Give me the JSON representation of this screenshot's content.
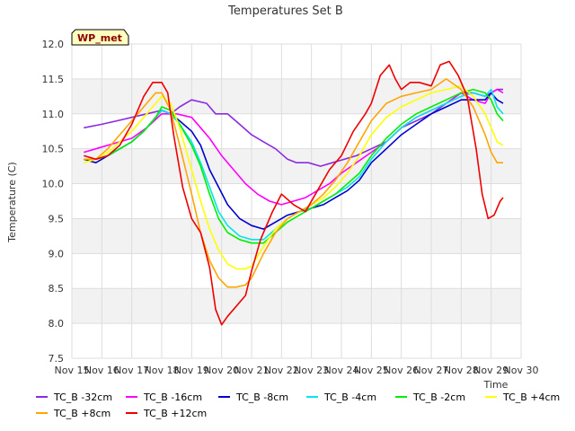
{
  "chart_data": {
    "type": "line",
    "title": "Temperatures Set B",
    "xlabel": "Time",
    "ylabel": "Temperature (C)",
    "badge": "WP_met",
    "ylim": [
      7.5,
      12.0
    ],
    "yticks": [
      "7.5",
      "8.0",
      "8.5",
      "9.0",
      "9.5",
      "10.0",
      "10.5",
      "11.0",
      "11.5",
      "12.0"
    ],
    "xlim": [
      15,
      30
    ],
    "xticks": [
      "Nov 15",
      "Nov 16",
      "Nov 17",
      "Nov 18",
      "Nov 19",
      "Nov 20",
      "Nov 21",
      "Nov 22",
      "Nov 23",
      "Nov 24",
      "Nov 25",
      "Nov 26",
      "Nov 27",
      "Nov 28",
      "Nov 29",
      "Nov 30"
    ],
    "grid": true,
    "legend_position": "bottom",
    "series": [
      {
        "name": "TC_B -32cm",
        "color": "#8a2be2",
        "x": [
          15.4,
          16,
          16.5,
          17,
          17.5,
          18,
          18.3,
          18.6,
          19.0,
          19.5,
          19.8,
          20.2,
          20.6,
          21.0,
          21.4,
          21.8,
          22.2,
          22.5,
          22.9,
          23.3,
          23.7,
          24.1,
          24.5,
          25.0,
          25.5,
          26.0,
          26.5,
          27.0,
          27.5,
          28.0,
          28.4,
          28.8,
          29.0,
          29.2,
          29.4
        ],
        "y": [
          10.8,
          10.85,
          10.9,
          10.95,
          11.0,
          11.05,
          11.0,
          11.1,
          11.2,
          11.15,
          11.0,
          11.0,
          10.85,
          10.7,
          10.6,
          10.5,
          10.35,
          10.3,
          10.3,
          10.25,
          10.3,
          10.35,
          10.4,
          10.5,
          10.6,
          10.8,
          10.9,
          11.0,
          11.15,
          11.3,
          11.3,
          11.25,
          11.3,
          11.35,
          11.35
        ]
      },
      {
        "name": "TC_B -16cm",
        "color": "#ff00ff",
        "x": [
          15.4,
          15.8,
          16.2,
          16.6,
          17.0,
          17.5,
          18.0,
          18.5,
          19.0,
          19.3,
          19.6,
          20.0,
          20.4,
          20.8,
          21.2,
          21.6,
          22.0,
          22.4,
          22.8,
          23.2,
          23.6,
          24.0,
          24.5,
          25.0,
          25.5,
          26.0,
          26.5,
          27.0,
          27.5,
          28.0,
          28.4,
          28.8,
          29.0,
          29.2,
          29.4
        ],
        "y": [
          10.45,
          10.5,
          10.55,
          10.6,
          10.65,
          10.8,
          11.0,
          11.0,
          10.95,
          10.8,
          10.65,
          10.4,
          10.2,
          10.0,
          9.85,
          9.75,
          9.7,
          9.75,
          9.8,
          9.9,
          10.0,
          10.15,
          10.3,
          10.45,
          10.6,
          10.8,
          10.95,
          11.05,
          11.15,
          11.3,
          11.2,
          11.15,
          11.3,
          11.35,
          11.3
        ]
      },
      {
        "name": "TC_B -8cm",
        "color": "#0000cd",
        "x": [
          15.4,
          15.8,
          16.2,
          16.6,
          17.0,
          17.4,
          17.8,
          18.0,
          18.3,
          18.6,
          19.0,
          19.3,
          19.6,
          19.9,
          20.2,
          20.6,
          21.0,
          21.4,
          21.8,
          22.2,
          22.6,
          23.0,
          23.4,
          23.8,
          24.2,
          24.6,
          25.0,
          25.5,
          26.0,
          26.5,
          27.0,
          27.5,
          28.0,
          28.4,
          28.8,
          29.0,
          29.2,
          29.4
        ],
        "y": [
          10.35,
          10.3,
          10.4,
          10.5,
          10.6,
          10.75,
          10.95,
          11.05,
          11.0,
          10.9,
          10.75,
          10.55,
          10.2,
          9.95,
          9.7,
          9.5,
          9.4,
          9.35,
          9.45,
          9.55,
          9.6,
          9.65,
          9.7,
          9.8,
          9.9,
          10.05,
          10.3,
          10.5,
          10.7,
          10.85,
          11.0,
          11.1,
          11.2,
          11.2,
          11.2,
          11.3,
          11.2,
          11.15
        ]
      },
      {
        "name": "TC_B -4cm",
        "color": "#00e5ee",
        "x": [
          15.4,
          15.8,
          16.2,
          16.6,
          17.0,
          17.4,
          17.8,
          18.0,
          18.3,
          18.6,
          19.0,
          19.3,
          19.6,
          19.9,
          20.2,
          20.6,
          21.0,
          21.4,
          21.8,
          22.2,
          22.6,
          23.0,
          23.4,
          23.8,
          24.2,
          24.6,
          25.0,
          25.5,
          26.0,
          26.5,
          27.0,
          27.5,
          28.0,
          28.4,
          28.8,
          29.0,
          29.2,
          29.4
        ],
        "y": [
          10.35,
          10.35,
          10.4,
          10.5,
          10.6,
          10.75,
          10.95,
          11.05,
          11.0,
          10.85,
          10.6,
          10.3,
          9.95,
          9.6,
          9.4,
          9.25,
          9.2,
          9.2,
          9.35,
          9.5,
          9.6,
          9.65,
          9.75,
          9.85,
          9.95,
          10.1,
          10.35,
          10.6,
          10.8,
          10.95,
          11.05,
          11.15,
          11.25,
          11.3,
          11.25,
          11.35,
          11.1,
          11.0
        ]
      },
      {
        "name": "TC_B -2cm",
        "color": "#00ee00",
        "x": [
          15.4,
          15.8,
          16.2,
          16.6,
          17.0,
          17.4,
          17.8,
          18.0,
          18.3,
          18.6,
          19.0,
          19.3,
          19.6,
          19.9,
          20.2,
          20.6,
          21.0,
          21.4,
          21.8,
          22.2,
          22.6,
          23.0,
          23.4,
          23.8,
          24.2,
          24.6,
          25.0,
          25.5,
          26.0,
          26.5,
          27.0,
          27.5,
          28.0,
          28.4,
          28.8,
          29.0,
          29.2,
          29.4
        ],
        "y": [
          10.35,
          10.35,
          10.4,
          10.5,
          10.6,
          10.75,
          10.95,
          11.1,
          11.05,
          10.85,
          10.55,
          10.25,
          9.85,
          9.5,
          9.3,
          9.2,
          9.15,
          9.15,
          9.3,
          9.45,
          9.55,
          9.65,
          9.75,
          9.85,
          10.0,
          10.15,
          10.4,
          10.65,
          10.85,
          11.0,
          11.1,
          11.2,
          11.3,
          11.35,
          11.3,
          11.2,
          11.0,
          10.9
        ]
      },
      {
        "name": "TC_B +4cm",
        "color": "#ffff00",
        "x": [
          15.4,
          15.8,
          16.2,
          16.6,
          17.0,
          17.4,
          17.8,
          18.0,
          18.3,
          18.6,
          19.0,
          19.3,
          19.6,
          19.9,
          20.2,
          20.5,
          20.8,
          21.0,
          21.4,
          21.8,
          22.2,
          22.6,
          23.0,
          23.4,
          23.8,
          24.2,
          24.6,
          25.0,
          25.5,
          26.0,
          26.5,
          27.0,
          27.5,
          28.0,
          28.4,
          28.8,
          29.0,
          29.2,
          29.4
        ],
        "y": [
          10.3,
          10.35,
          10.45,
          10.6,
          10.75,
          10.95,
          11.15,
          11.25,
          11.15,
          10.8,
          10.2,
          9.75,
          9.35,
          9.05,
          8.85,
          8.78,
          8.78,
          8.82,
          9.1,
          9.35,
          9.5,
          9.6,
          9.7,
          9.8,
          9.95,
          10.15,
          10.4,
          10.7,
          10.95,
          11.1,
          11.2,
          11.3,
          11.35,
          11.4,
          11.25,
          11.0,
          10.8,
          10.6,
          10.55
        ]
      },
      {
        "name": "TC_B +8cm",
        "color": "#ffa500",
        "x": [
          15.4,
          15.8,
          16.2,
          16.6,
          17.0,
          17.4,
          17.8,
          18.0,
          18.3,
          18.6,
          19.0,
          19.3,
          19.6,
          19.9,
          20.2,
          20.5,
          20.8,
          21.0,
          21.4,
          21.8,
          22.2,
          22.6,
          23.0,
          23.4,
          23.8,
          24.2,
          24.6,
          25.0,
          25.5,
          26.0,
          26.5,
          27.0,
          27.5,
          28.0,
          28.4,
          28.8,
          29.0,
          29.2,
          29.4
        ],
        "y": [
          10.35,
          10.35,
          10.5,
          10.7,
          10.9,
          11.1,
          11.3,
          11.3,
          11.05,
          10.55,
          9.85,
          9.3,
          8.9,
          8.65,
          8.52,
          8.52,
          8.55,
          8.65,
          9.0,
          9.3,
          9.5,
          9.6,
          9.7,
          9.85,
          10.05,
          10.3,
          10.6,
          10.9,
          11.15,
          11.25,
          11.3,
          11.35,
          11.5,
          11.35,
          11.1,
          10.7,
          10.45,
          10.3,
          10.3
        ]
      },
      {
        "name": "TC_B +12cm",
        "color": "#ee0000",
        "x": [
          15.4,
          15.8,
          16.2,
          16.6,
          17.0,
          17.4,
          17.7,
          18.0,
          18.2,
          18.4,
          18.7,
          19.0,
          19.3,
          19.6,
          19.8,
          20.0,
          20.2,
          20.5,
          20.8,
          21.0,
          21.3,
          21.7,
          22.0,
          22.4,
          22.8,
          23.2,
          23.6,
          24.0,
          24.4,
          24.8,
          25.0,
          25.3,
          25.6,
          25.8,
          26.0,
          26.3,
          26.6,
          27.0,
          27.3,
          27.6,
          27.9,
          28.2,
          28.5,
          28.7,
          28.9,
          29.1,
          29.3,
          29.4
        ],
        "y": [
          10.4,
          10.35,
          10.4,
          10.55,
          10.85,
          11.25,
          11.45,
          11.45,
          11.3,
          10.7,
          9.95,
          9.5,
          9.3,
          8.8,
          8.2,
          7.98,
          8.1,
          8.25,
          8.4,
          8.75,
          9.2,
          9.6,
          9.85,
          9.7,
          9.6,
          9.9,
          10.2,
          10.4,
          10.75,
          11.0,
          11.15,
          11.55,
          11.7,
          11.5,
          11.35,
          11.45,
          11.45,
          11.4,
          11.7,
          11.75,
          11.55,
          11.25,
          10.5,
          9.85,
          9.5,
          9.55,
          9.75,
          9.8
        ]
      }
    ]
  }
}
